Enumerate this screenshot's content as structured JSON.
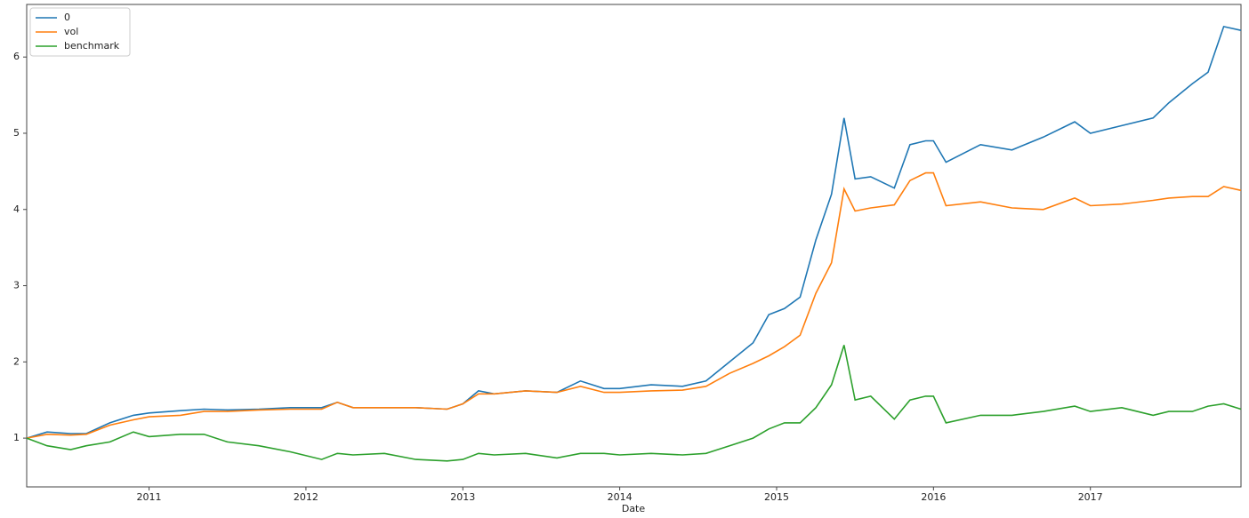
{
  "chart_data": {
    "type": "line",
    "x_label": "Date",
    "x": [
      2010.22,
      2010.35,
      2010.5,
      2010.6,
      2010.75,
      2010.9,
      2011.0,
      2011.2,
      2011.35,
      2011.5,
      2011.7,
      2011.9,
      2012.1,
      2012.2,
      2012.3,
      2012.5,
      2012.7,
      2012.9,
      2013.0,
      2013.1,
      2013.2,
      2013.4,
      2013.6,
      2013.75,
      2013.9,
      2014.0,
      2014.2,
      2014.4,
      2014.55,
      2014.7,
      2014.85,
      2014.95,
      2015.05,
      2015.15,
      2015.25,
      2015.35,
      2015.43,
      2015.5,
      2015.6,
      2015.75,
      2015.85,
      2015.95,
      2016.0,
      2016.08,
      2016.3,
      2016.5,
      2016.7,
      2016.9,
      2017.0,
      2017.2,
      2017.4,
      2017.5,
      2017.65,
      2017.75,
      2017.85,
      2017.96
    ],
    "series": [
      {
        "name": "0",
        "color": "#1f77b4",
        "values": [
          1.0,
          1.08,
          1.06,
          1.06,
          1.2,
          1.3,
          1.33,
          1.36,
          1.38,
          1.37,
          1.38,
          1.4,
          1.4,
          1.47,
          1.4,
          1.4,
          1.4,
          1.38,
          1.45,
          1.62,
          1.58,
          1.62,
          1.6,
          1.75,
          1.65,
          1.65,
          1.7,
          1.68,
          1.75,
          2.0,
          2.25,
          2.62,
          2.7,
          2.85,
          3.6,
          4.2,
          5.2,
          4.4,
          4.43,
          4.28,
          4.85,
          4.9,
          4.9,
          4.62,
          4.85,
          4.78,
          4.95,
          5.15,
          5.0,
          5.1,
          5.2,
          5.4,
          5.65,
          5.8,
          6.4,
          6.35
        ]
      },
      {
        "name": "vol",
        "color": "#ff7f0e",
        "values": [
          1.0,
          1.05,
          1.04,
          1.05,
          1.17,
          1.24,
          1.28,
          1.3,
          1.35,
          1.35,
          1.37,
          1.38,
          1.38,
          1.47,
          1.4,
          1.4,
          1.4,
          1.38,
          1.45,
          1.58,
          1.58,
          1.62,
          1.6,
          1.68,
          1.6,
          1.6,
          1.62,
          1.63,
          1.68,
          1.85,
          1.98,
          2.08,
          2.2,
          2.35,
          2.9,
          3.3,
          4.27,
          3.98,
          4.02,
          4.06,
          4.38,
          4.48,
          4.48,
          4.05,
          4.1,
          4.02,
          4.0,
          4.15,
          4.05,
          4.07,
          4.12,
          4.15,
          4.17,
          4.17,
          4.3,
          4.25
        ]
      },
      {
        "name": "benchmark",
        "color": "#2ca02c",
        "values": [
          1.0,
          0.9,
          0.85,
          0.9,
          0.95,
          1.08,
          1.02,
          1.05,
          1.05,
          0.95,
          0.9,
          0.82,
          0.72,
          0.8,
          0.78,
          0.8,
          0.72,
          0.7,
          0.72,
          0.8,
          0.78,
          0.8,
          0.74,
          0.8,
          0.8,
          0.78,
          0.8,
          0.78,
          0.8,
          0.9,
          1.0,
          1.12,
          1.2,
          1.2,
          1.4,
          1.7,
          2.22,
          1.5,
          1.55,
          1.25,
          1.5,
          1.55,
          1.55,
          1.2,
          1.3,
          1.3,
          1.35,
          1.42,
          1.35,
          1.4,
          1.3,
          1.35,
          1.35,
          1.42,
          1.45,
          1.38
        ]
      }
    ],
    "xlim": [
      2010.22,
      2017.96
    ],
    "xticks": [
      2011,
      2012,
      2013,
      2014,
      2015,
      2016,
      2017
    ],
    "ylim": [
      0.36,
      6.69
    ],
    "yticks": [
      1,
      2,
      3,
      4,
      5,
      6
    ],
    "legend": "upper-left",
    "grid": false
  }
}
